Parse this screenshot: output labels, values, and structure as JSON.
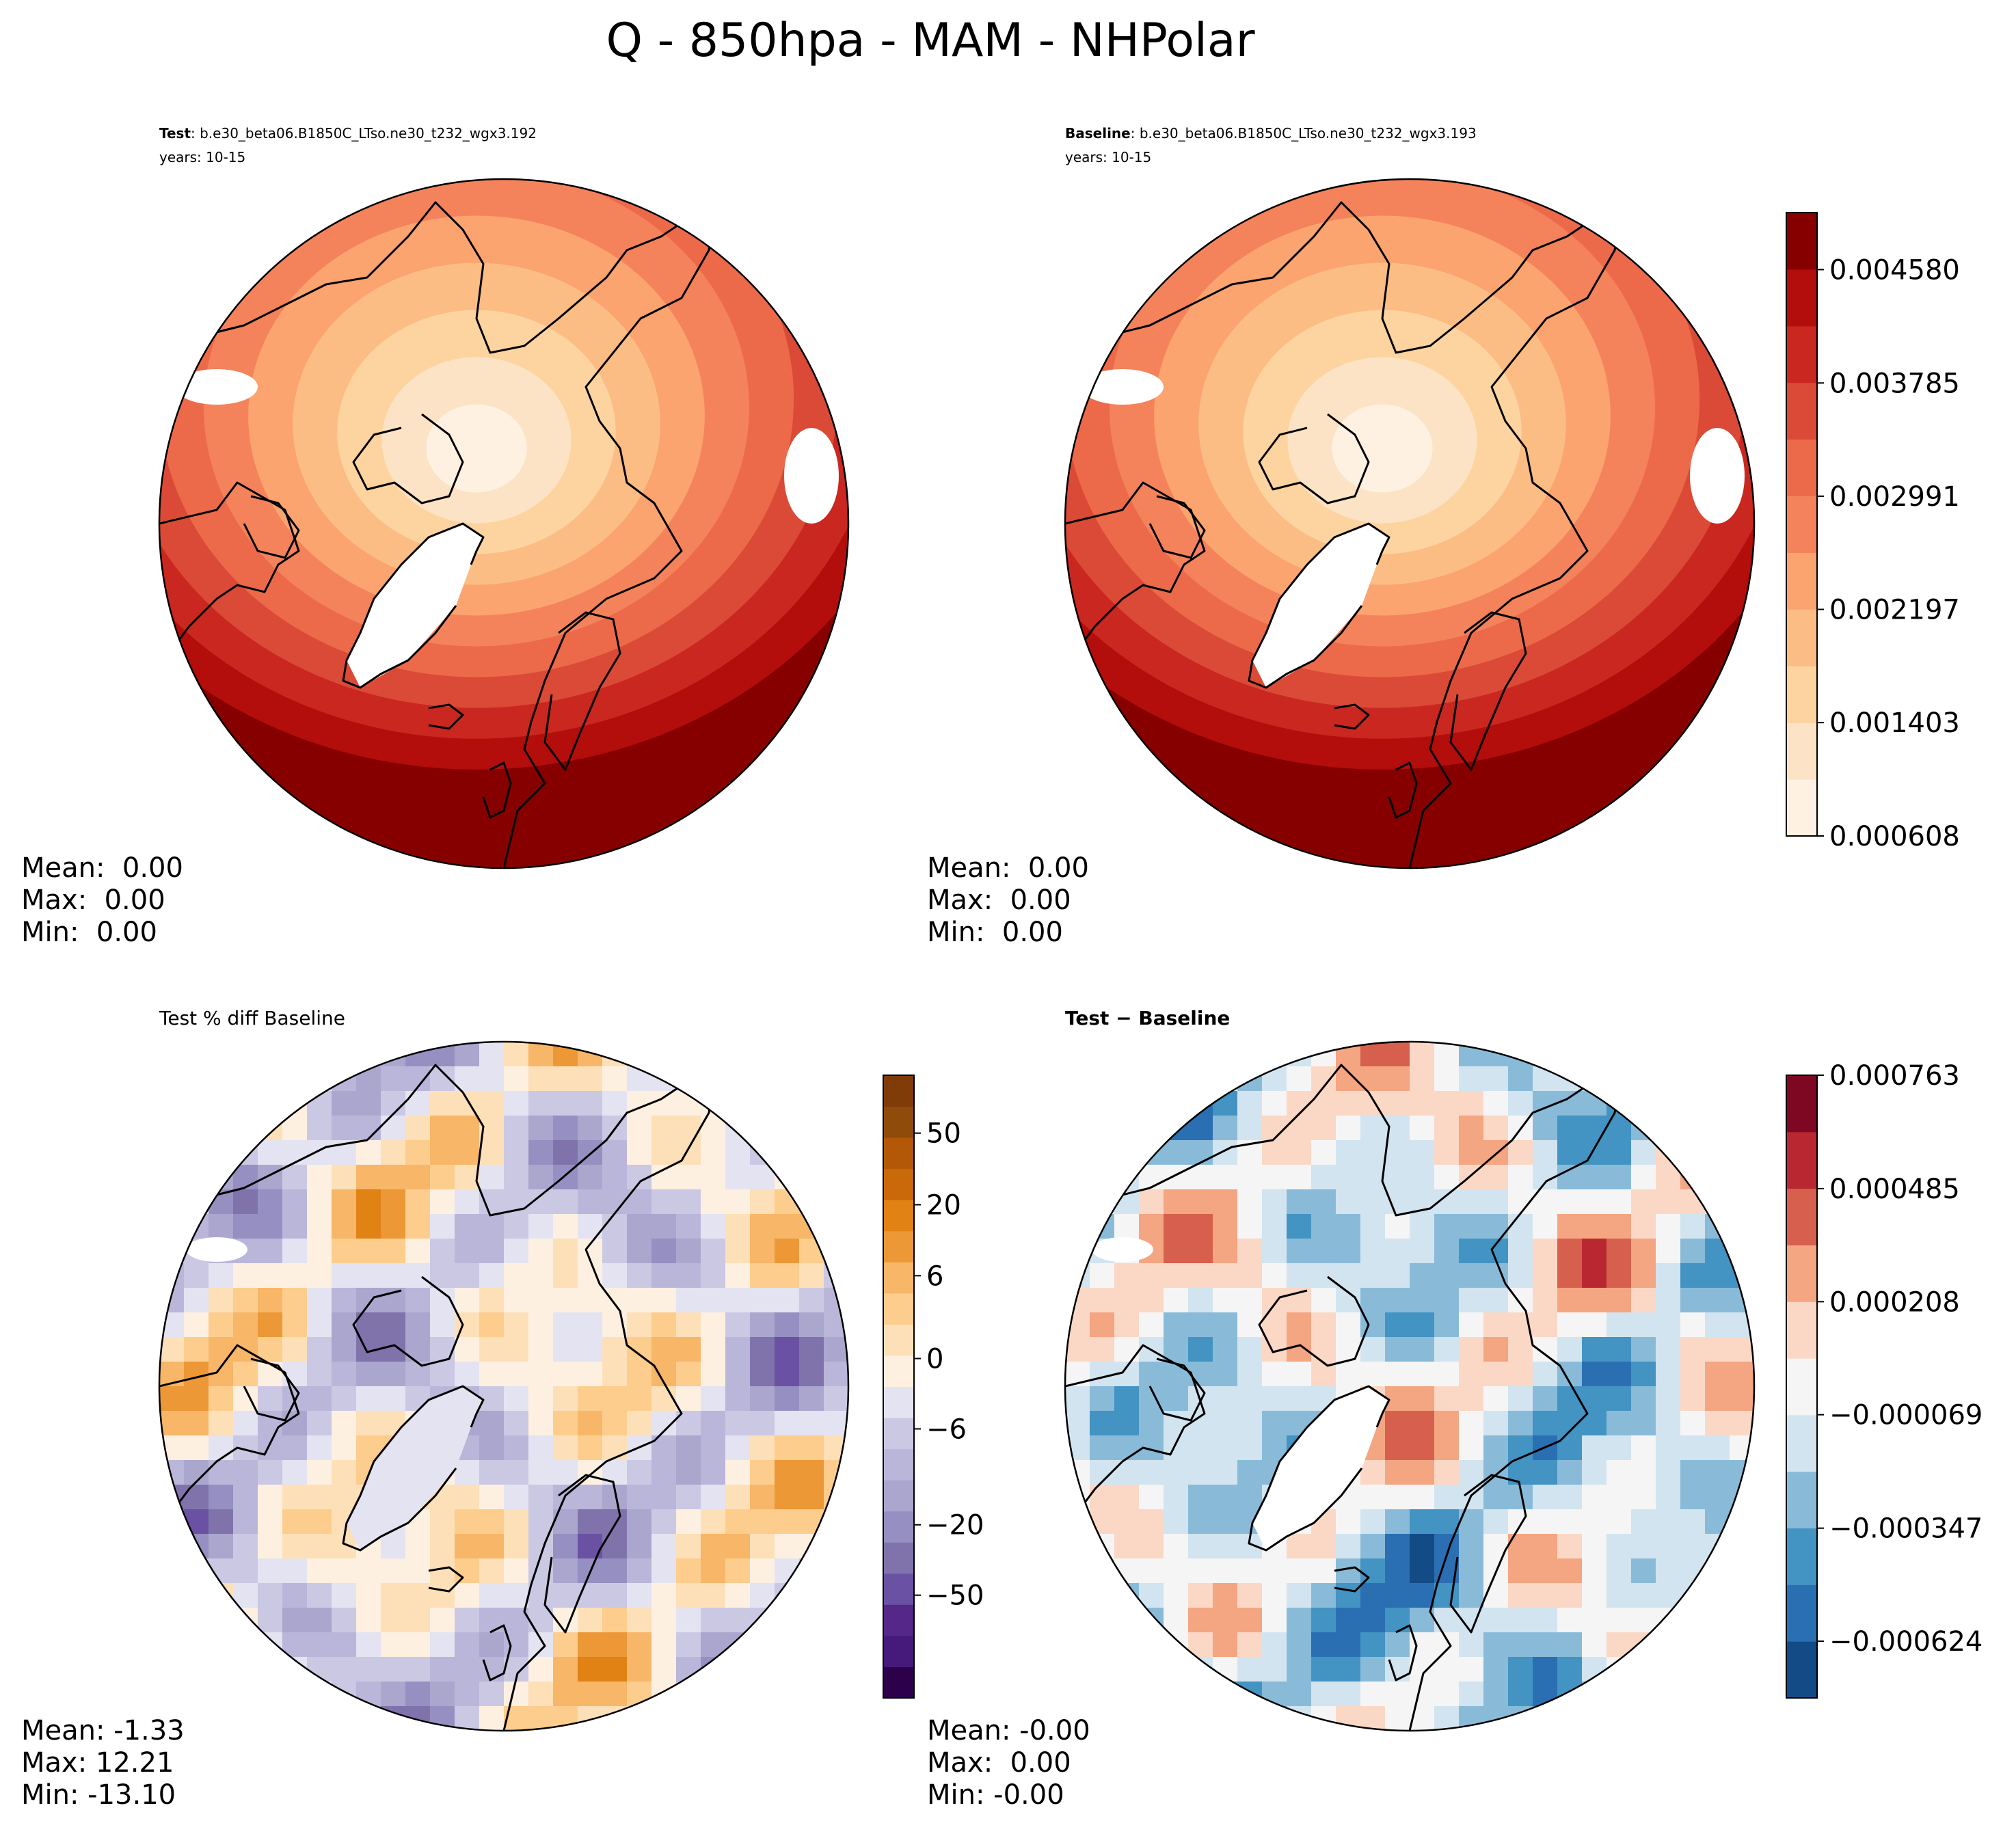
{
  "title": "Q - 850hpa - MAM - NHPolar",
  "chart_data": [
    {
      "type": "heatmap",
      "name": "test",
      "header_label": "Test",
      "header_case": ": b.e30_beta06.B1850C_LTso.ne30_t232_wgx3.192",
      "years": "years: 10-15",
      "projection": "north polar stereographic",
      "stats": [
        "Mean:  0.00",
        "Max:  0.00",
        "Min:  0.00"
      ],
      "pattern": "field"
    },
    {
      "type": "heatmap",
      "name": "baseline",
      "header_label": "Baseline",
      "header_case": ": b.e30_beta06.B1850C_LTso.ne30_t232_wgx3.193",
      "years": "years: 10-15",
      "projection": "north polar stereographic",
      "stats": [
        "Mean:  0.00",
        "Max:  0.00",
        "Min:  0.00"
      ],
      "pattern": "field",
      "colorbar": {
        "colormap": "OrRd-like",
        "ticks": [
          "0.004580",
          "0.003785",
          "0.002991",
          "0.002197",
          "0.001403",
          "0.000608"
        ],
        "tick_values": [
          0.00458,
          0.003785,
          0.002991,
          0.002197,
          0.001403,
          0.000608
        ],
        "range": [
          0.000608,
          0.00498
        ],
        "levels": 11,
        "colors": [
          "#fff1e2",
          "#fde3c5",
          "#fdd4a0",
          "#fcbd85",
          "#fba46f",
          "#f4835b",
          "#ec6a4a",
          "#db4a36",
          "#c9271f",
          "#b30d0c",
          "#860000"
        ]
      }
    },
    {
      "type": "heatmap",
      "name": "pct-diff",
      "header": "Test % diff Baseline",
      "projection": "north polar stereographic",
      "stats": [
        "Mean: -1.33",
        "Max: 12.21",
        "Min: -13.10"
      ],
      "pattern": "pctdiff",
      "colorbar": {
        "colormap": "PuOr-like",
        "ticks": [
          "50",
          "20",
          "6",
          "0",
          "−6",
          "−20",
          "−50"
        ],
        "levels": 20,
        "colors": [
          "#2d004b",
          "#451a7b",
          "#542788",
          "#6a51a3",
          "#8073ac",
          "#9590c1",
          "#aaa6ce",
          "#bab6d9",
          "#cbc8e3",
          "#e4e3f1",
          "#fdf0e1",
          "#fde0b8",
          "#fdcd8e",
          "#f7b668",
          "#ec9837",
          "#e08214",
          "#c9690a",
          "#b35806",
          "#8f4b0a",
          "#7f3b08"
        ]
      }
    },
    {
      "type": "heatmap",
      "name": "abs-diff",
      "header": "Test − Baseline",
      "projection": "north polar stereographic",
      "stats": [
        "Mean: -0.00",
        "Max:  0.00",
        "Min: -0.00"
      ],
      "pattern": "absdiff",
      "colorbar": {
        "colormap": "RdBu_r-like",
        "ticks": [
          "0.000763",
          "0.000485",
          "0.000208",
          "−0.000069",
          "−0.000347",
          "−0.000624"
        ],
        "tick_values": [
          0.000763,
          0.000485,
          0.000208,
          -6.9e-05,
          -0.000347,
          -0.000624
        ],
        "range": [
          -0.000763,
          0.000763
        ],
        "levels": 11,
        "colors": [
          "#134b87",
          "#2b6fb3",
          "#4393c3",
          "#89bbd9",
          "#d2e4ef",
          "#f5f5f5",
          "#fbd8c5",
          "#f4a582",
          "#d6604d",
          "#b92831",
          "#7e0822"
        ]
      }
    }
  ]
}
